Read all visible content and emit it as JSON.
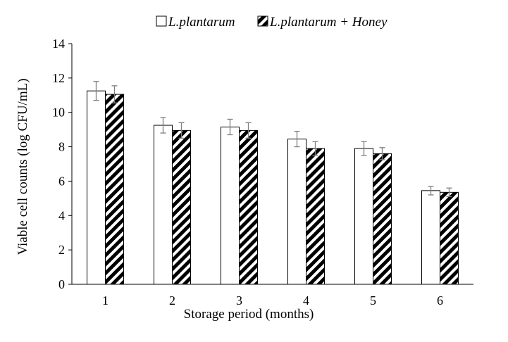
{
  "chart_data": {
    "type": "bar",
    "title": "",
    "xlabel": "Storage period (months)",
    "ylabel": "Viable cell counts (log CFU/mL)",
    "ylim": [
      0,
      14
    ],
    "yticks": [
      "0",
      "2",
      "4",
      "6",
      "8",
      "10",
      "12",
      "14"
    ],
    "categories": [
      "1",
      "2",
      "3",
      "4",
      "5",
      "6"
    ],
    "legend_position": "top",
    "series": [
      {
        "name": "L.plantarum",
        "fill": "white",
        "values": [
          11.25,
          9.25,
          9.15,
          8.45,
          7.9,
          5.45
        ],
        "errors": [
          0.55,
          0.45,
          0.45,
          0.45,
          0.4,
          0.25
        ]
      },
      {
        "name": "L.plantarum + Honey",
        "fill": "diagonal-hatch",
        "values": [
          11.05,
          8.95,
          8.95,
          7.9,
          7.6,
          5.35
        ],
        "errors": [
          0.5,
          0.45,
          0.45,
          0.4,
          0.35,
          0.25
        ]
      }
    ]
  },
  "colors": {
    "axis": "#000000",
    "bar_edge": "#000000",
    "error_bar": "#7f7f7f",
    "hatch": "#000000"
  }
}
